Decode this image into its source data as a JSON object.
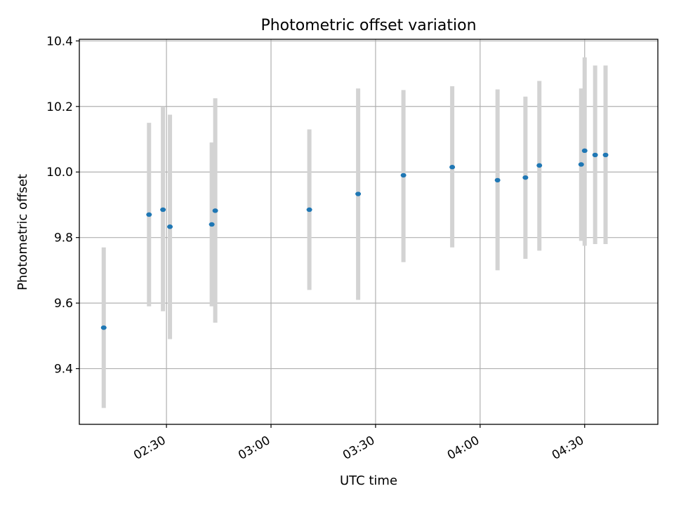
{
  "chart_data": {
    "type": "scatter",
    "title": "Photometric offset variation",
    "xlabel": "UTC time",
    "ylabel": "Photometric offset",
    "xlim": [
      "02:05",
      "04:51"
    ],
    "ylim": [
      9.23,
      10.405
    ],
    "x_ticks": [
      "02:30",
      "03:00",
      "03:30",
      "04:00",
      "04:30"
    ],
    "y_ticks": [
      9.4,
      9.6,
      9.8,
      10.0,
      10.2,
      10.4
    ],
    "grid": true,
    "colors": {
      "points": "#1f77b4",
      "errorbars": "#d3d3d3",
      "grid": "#b0b0b0"
    },
    "points": [
      {
        "x": "02:12",
        "y": 9.525,
        "low": 9.28,
        "high": 9.77
      },
      {
        "x": "02:25",
        "y": 9.87,
        "low": 9.59,
        "high": 10.15
      },
      {
        "x": "02:29",
        "y": 9.885,
        "low": 9.575,
        "high": 10.2
      },
      {
        "x": "02:31",
        "y": 9.833,
        "low": 9.49,
        "high": 10.175
      },
      {
        "x": "02:43",
        "y": 9.84,
        "low": 9.59,
        "high": 10.09
      },
      {
        "x": "02:44",
        "y": 9.882,
        "low": 9.54,
        "high": 10.225
      },
      {
        "x": "03:11",
        "y": 9.885,
        "low": 9.64,
        "high": 10.13
      },
      {
        "x": "03:25",
        "y": 9.933,
        "low": 9.61,
        "high": 10.255
      },
      {
        "x": "03:38",
        "y": 9.99,
        "low": 9.725,
        "high": 10.25
      },
      {
        "x": "03:52",
        "y": 10.015,
        "low": 9.77,
        "high": 10.262
      },
      {
        "x": "04:05",
        "y": 9.975,
        "low": 9.7,
        "high": 10.252
      },
      {
        "x": "04:13",
        "y": 9.983,
        "low": 9.735,
        "high": 10.23
      },
      {
        "x": "04:17",
        "y": 10.02,
        "low": 9.76,
        "high": 10.278
      },
      {
        "x": "04:29",
        "y": 10.023,
        "low": 9.79,
        "high": 10.255
      },
      {
        "x": "04:30",
        "y": 10.065,
        "low": 9.775,
        "high": 10.35
      },
      {
        "x": "04:33",
        "y": 10.052,
        "low": 9.78,
        "high": 10.325
      },
      {
        "x": "04:36",
        "y": 10.052,
        "low": 9.78,
        "high": 10.325
      }
    ]
  }
}
